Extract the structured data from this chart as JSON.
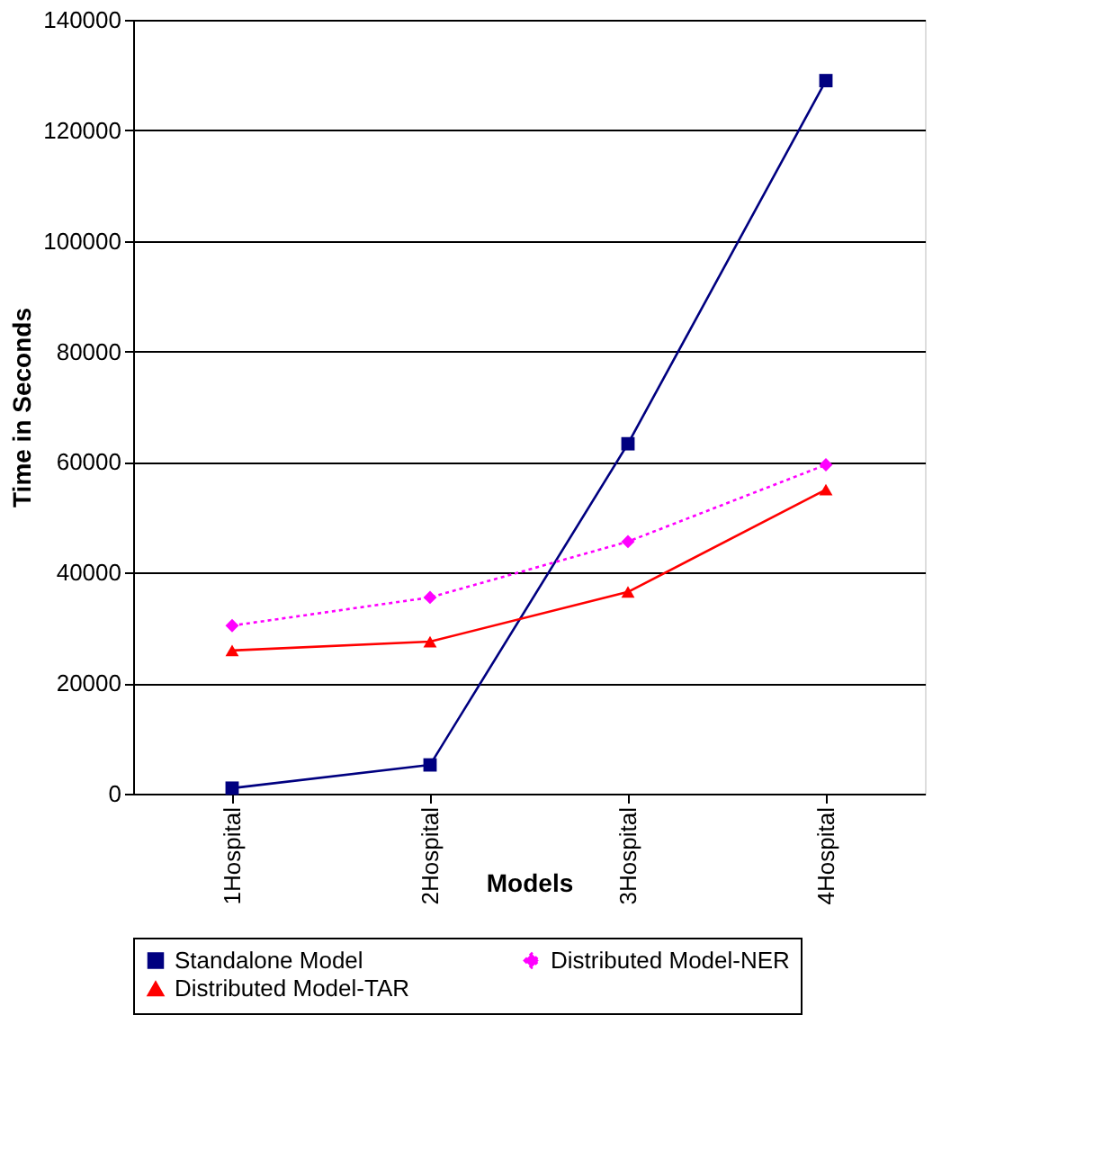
{
  "chart_data": {
    "type": "line",
    "xlabel": "Models",
    "ylabel": "Time in Seconds",
    "categories": [
      "1Hospital",
      "2Hospital",
      "3Hospital",
      "4Hospital"
    ],
    "series": [
      {
        "name": "Standalone Model",
        "color": "#000080",
        "values": [
          1000,
          5200,
          63300,
          129000
        ],
        "marker": "square",
        "line_style": "solid"
      },
      {
        "name": "Distributed Model-NER",
        "color": "#ff00ff",
        "values": [
          30400,
          35500,
          45600,
          59500
        ],
        "marker": "diamond",
        "line_style": "dotted"
      },
      {
        "name": "Distributed Model-TAR",
        "color": "#ff0000",
        "values": [
          25900,
          27500,
          36500,
          55000
        ],
        "marker": "triangle",
        "line_style": "solid"
      }
    ],
    "ylim": [
      0,
      140000
    ],
    "yticks": [
      0,
      20000,
      40000,
      60000,
      80000,
      100000,
      120000,
      140000
    ],
    "grid": "y",
    "legend": "bottom"
  }
}
